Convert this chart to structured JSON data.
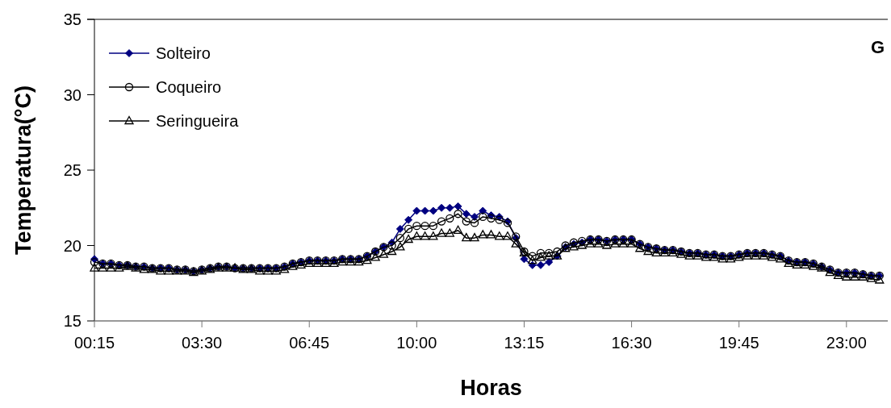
{
  "chart_data": {
    "type": "line",
    "xlabel": "Horas",
    "ylabel": "Temperatura(°C)",
    "annotations": [
      "G"
    ],
    "x": [
      0.25,
      0.5,
      0.75,
      1,
      1.25,
      1.5,
      1.75,
      2,
      2.25,
      2.5,
      2.75,
      3,
      3.25,
      3.5,
      3.75,
      4,
      4.25,
      4.5,
      4.75,
      5,
      5.25,
      5.5,
      5.75,
      6,
      6.25,
      6.5,
      6.75,
      7,
      7.25,
      7.5,
      7.75,
      8,
      8.25,
      8.5,
      8.75,
      9,
      9.25,
      9.5,
      9.75,
      10,
      10.25,
      10.5,
      10.75,
      11,
      11.25,
      11.5,
      11.75,
      12,
      12.25,
      12.5,
      12.75,
      13,
      13.25,
      13.5,
      13.75,
      14,
      14.25,
      14.5,
      14.75,
      15,
      15.25,
      15.5,
      15.75,
      16,
      16.25,
      16.5,
      16.75,
      17,
      17.25,
      17.5,
      17.75,
      18,
      18.25,
      18.5,
      18.75,
      19,
      19.25,
      19.5,
      19.75,
      20,
      20.25,
      20.5,
      20.75,
      21,
      21.25,
      21.5,
      21.75,
      22,
      22.25,
      22.5,
      22.75,
      23,
      23.25,
      23.5,
      23.75,
      24
    ],
    "series": [
      {
        "name": "Solteiro",
        "color": "#000080",
        "marker": "diamond",
        "values": [
          19.1,
          18.8,
          18.8,
          18.7,
          18.7,
          18.6,
          18.6,
          18.5,
          18.5,
          18.5,
          18.4,
          18.4,
          18.3,
          18.4,
          18.5,
          18.6,
          18.6,
          18.5,
          18.5,
          18.5,
          18.5,
          18.5,
          18.5,
          18.6,
          18.8,
          18.9,
          19.0,
          19.0,
          19.0,
          19.0,
          19.1,
          19.1,
          19.1,
          19.3,
          19.6,
          19.9,
          20.2,
          21.1,
          21.7,
          22.3,
          22.3,
          22.3,
          22.5,
          22.5,
          22.6,
          22.1,
          21.9,
          22.3,
          22.0,
          21.9,
          21.6,
          20.5,
          19.1,
          18.7,
          18.7,
          18.9,
          19.3,
          19.9,
          20.1,
          20.2,
          20.4,
          20.4,
          20.3,
          20.4,
          20.4,
          20.4,
          20.1,
          19.9,
          19.8,
          19.7,
          19.7,
          19.6,
          19.5,
          19.5,
          19.4,
          19.4,
          19.3,
          19.3,
          19.4,
          19.5,
          19.5,
          19.5,
          19.4,
          19.3,
          19.0,
          18.9,
          18.9,
          18.8,
          18.6,
          18.4,
          18.2,
          18.2,
          18.2,
          18.1,
          18.0,
          18.0
        ]
      },
      {
        "name": "Coqueiro",
        "color": "#000000",
        "marker": "circle",
        "values": [
          18.9,
          18.8,
          18.8,
          18.7,
          18.7,
          18.6,
          18.6,
          18.5,
          18.5,
          18.5,
          18.4,
          18.4,
          18.3,
          18.4,
          18.5,
          18.6,
          18.6,
          18.5,
          18.5,
          18.5,
          18.5,
          18.5,
          18.5,
          18.6,
          18.8,
          18.9,
          19.0,
          19.0,
          19.0,
          19.0,
          19.1,
          19.1,
          19.1,
          19.3,
          19.6,
          19.9,
          20.0,
          20.5,
          21.1,
          21.3,
          21.3,
          21.3,
          21.6,
          21.8,
          22.1,
          21.6,
          21.5,
          21.9,
          21.8,
          21.7,
          21.5,
          20.6,
          19.6,
          19.3,
          19.5,
          19.5,
          19.6,
          20.0,
          20.2,
          20.3,
          20.4,
          20.4,
          20.3,
          20.4,
          20.4,
          20.4,
          20.1,
          19.9,
          19.8,
          19.7,
          19.7,
          19.6,
          19.5,
          19.5,
          19.4,
          19.4,
          19.3,
          19.3,
          19.4,
          19.5,
          19.5,
          19.5,
          19.4,
          19.3,
          19.0,
          18.9,
          18.9,
          18.8,
          18.6,
          18.4,
          18.2,
          18.2,
          18.2,
          18.1,
          18.0,
          18.0
        ]
      },
      {
        "name": "Seringueira",
        "color": "#000000",
        "marker": "triangle",
        "values": [
          18.5,
          18.5,
          18.5,
          18.5,
          18.6,
          18.5,
          18.4,
          18.4,
          18.3,
          18.3,
          18.3,
          18.3,
          18.2,
          18.3,
          18.4,
          18.5,
          18.5,
          18.5,
          18.4,
          18.4,
          18.3,
          18.3,
          18.3,
          18.4,
          18.6,
          18.7,
          18.8,
          18.8,
          18.8,
          18.8,
          18.9,
          18.9,
          18.9,
          19.0,
          19.2,
          19.4,
          19.6,
          19.9,
          20.4,
          20.6,
          20.6,
          20.6,
          20.8,
          20.8,
          21.0,
          20.5,
          20.5,
          20.7,
          20.7,
          20.6,
          20.6,
          20.1,
          19.5,
          19.0,
          19.2,
          19.3,
          19.3,
          19.8,
          19.9,
          20.0,
          20.1,
          20.1,
          20.0,
          20.1,
          20.1,
          20.1,
          19.8,
          19.6,
          19.5,
          19.5,
          19.5,
          19.4,
          19.3,
          19.3,
          19.2,
          19.2,
          19.1,
          19.1,
          19.2,
          19.3,
          19.3,
          19.3,
          19.2,
          19.1,
          18.8,
          18.7,
          18.7,
          18.6,
          18.5,
          18.2,
          18.0,
          17.9,
          17.9,
          17.9,
          17.8,
          17.7
        ]
      }
    ],
    "xlim": [
      0.25,
      24.25
    ],
    "xticks": [
      {
        "value": 0.25,
        "label": "00:15"
      },
      {
        "value": 3.5,
        "label": "03:30"
      },
      {
        "value": 6.75,
        "label": "06:45"
      },
      {
        "value": 10,
        "label": "10:00"
      },
      {
        "value": 13.25,
        "label": "13:15"
      },
      {
        "value": 16.5,
        "label": "16:30"
      },
      {
        "value": 19.75,
        "label": "19:45"
      },
      {
        "value": 23,
        "label": "23:00"
      }
    ],
    "ylim": [
      15,
      35
    ],
    "yticks": [
      15,
      20,
      25,
      30,
      35
    ],
    "legend": "top left",
    "line_style": "solid"
  }
}
